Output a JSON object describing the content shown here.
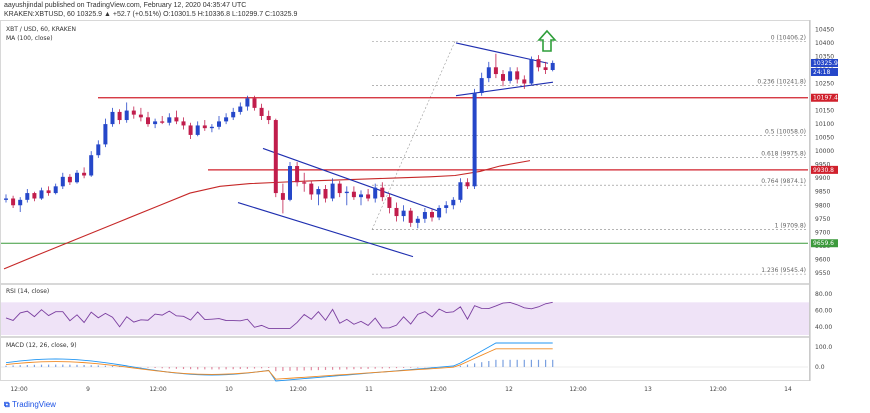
{
  "header": {
    "publisher": "aayushjindal published on TradingView.com, February 12, 2020 04:35:47 UTC",
    "quote": "KRAKEN:XBTUSD, 60  10325.9 ▲ +52.7 (+0.51%)  O:10301.5 H:10336.8 L:10299.7 C:10325.9",
    "symbol": "XBT / USD, 60, KRAKEN",
    "ma_label": "MA (100, close)"
  },
  "footer": {
    "brand": "TradingView"
  },
  "colors": {
    "up": "#2547c9",
    "down": "#c11d4c",
    "ma": "#c62828",
    "channel": "#1f2fb0",
    "hline": "#d0202c",
    "support": "#3c9a3c",
    "rsi_band": "#efe3f7",
    "rsi_line": "#7b3fa0",
    "macd": "#2196f3",
    "signal": "#f08a24",
    "arrow": "#2e9e3a"
  },
  "chart_data": {
    "type": "candlestick",
    "x_ticks": [
      "12:00",
      "9",
      "12:00",
      "10",
      "12:00",
      "11",
      "12:00",
      "12",
      "12:00",
      "13",
      "12:00",
      "14"
    ],
    "y_ticks": [
      10450,
      10400,
      10350,
      10300,
      10250,
      10200,
      10150,
      10100,
      10050,
      10000,
      9950,
      9900,
      9850,
      9800,
      9750,
      9700,
      9650,
      9600,
      9550
    ],
    "ylim": [
      9520,
      10470
    ],
    "price_tags": [
      {
        "value": 10325.9,
        "label": "10325.9",
        "color": "#2547c9"
      },
      {
        "value": 10325.9,
        "label": "24:18",
        "color": "#2547c9",
        "offset": 9
      },
      {
        "value": 10197.4,
        "label": "10197.4",
        "color": "#d0202c"
      },
      {
        "value": 9930.8,
        "label": "9930.8",
        "color": "#d0202c"
      },
      {
        "value": 9659.6,
        "label": "9659.6",
        "color": "#3c9a3c"
      }
    ],
    "fib_levels": [
      {
        "label": "0 (10406.2)",
        "value": 10406.2
      },
      {
        "label": "0.236 (10241.8)",
        "value": 10241.8
      },
      {
        "label": "0.5 (10058.0)",
        "value": 10058.0
      },
      {
        "label": "0.618 (9975.8)",
        "value": 9975.8
      },
      {
        "label": "0.764 (9874.1)",
        "value": 9874.1
      },
      {
        "label": "1 (9709.8)",
        "value": 9709.8
      },
      {
        "label": "1.236 (9545.4)",
        "value": 9545.4
      }
    ],
    "horizontal_lines": [
      10197.4,
      9930.8,
      9659.6
    ],
    "ma_path": [
      [
        4,
        9565
      ],
      [
        40,
        9620
      ],
      [
        80,
        9680
      ],
      [
        120,
        9740
      ],
      [
        160,
        9800
      ],
      [
        190,
        9845
      ],
      [
        220,
        9870
      ],
      [
        250,
        9880
      ],
      [
        280,
        9885
      ],
      [
        310,
        9890
      ],
      [
        350,
        9895
      ],
      [
        390,
        9900
      ],
      [
        430,
        9905
      ],
      [
        455,
        9910
      ],
      [
        480,
        9925
      ],
      [
        500,
        9945
      ],
      [
        530,
        9965
      ]
    ],
    "candles": [
      {
        "i": 0,
        "o": 9820,
        "h": 9840,
        "l": 9810,
        "c": 9825
      },
      {
        "i": 1,
        "o": 9825,
        "h": 9835,
        "l": 9790,
        "c": 9800
      },
      {
        "i": 2,
        "o": 9800,
        "h": 9830,
        "l": 9775,
        "c": 9820
      },
      {
        "i": 3,
        "o": 9820,
        "h": 9860,
        "l": 9810,
        "c": 9845
      },
      {
        "i": 4,
        "o": 9845,
        "h": 9850,
        "l": 9815,
        "c": 9825
      },
      {
        "i": 5,
        "o": 9825,
        "h": 9865,
        "l": 9820,
        "c": 9855
      },
      {
        "i": 6,
        "o": 9855,
        "h": 9870,
        "l": 9835,
        "c": 9845
      },
      {
        "i": 7,
        "o": 9845,
        "h": 9880,
        "l": 9840,
        "c": 9870
      },
      {
        "i": 8,
        "o": 9870,
        "h": 9920,
        "l": 9860,
        "c": 9905
      },
      {
        "i": 9,
        "o": 9905,
        "h": 9915,
        "l": 9875,
        "c": 9885
      },
      {
        "i": 10,
        "o": 9885,
        "h": 9930,
        "l": 9880,
        "c": 9920
      },
      {
        "i": 11,
        "o": 9920,
        "h": 9940,
        "l": 9900,
        "c": 9910
      },
      {
        "i": 12,
        "o": 9910,
        "h": 10000,
        "l": 9905,
        "c": 9985
      },
      {
        "i": 13,
        "o": 9985,
        "h": 10040,
        "l": 9975,
        "c": 10025
      },
      {
        "i": 14,
        "o": 10025,
        "h": 10120,
        "l": 10015,
        "c": 10100
      },
      {
        "i": 15,
        "o": 10100,
        "h": 10160,
        "l": 10090,
        "c": 10145
      },
      {
        "i": 16,
        "o": 10145,
        "h": 10155,
        "l": 10100,
        "c": 10115
      },
      {
        "i": 17,
        "o": 10115,
        "h": 10180,
        "l": 10105,
        "c": 10150
      },
      {
        "i": 18,
        "o": 10150,
        "h": 10165,
        "l": 10120,
        "c": 10135
      },
      {
        "i": 19,
        "o": 10135,
        "h": 10160,
        "l": 10110,
        "c": 10125
      },
      {
        "i": 20,
        "o": 10125,
        "h": 10145,
        "l": 10090,
        "c": 10100
      },
      {
        "i": 21,
        "o": 10100,
        "h": 10120,
        "l": 10085,
        "c": 10110
      },
      {
        "i": 22,
        "o": 10110,
        "h": 10130,
        "l": 10100,
        "c": 10105
      },
      {
        "i": 23,
        "o": 10105,
        "h": 10140,
        "l": 10095,
        "c": 10125
      },
      {
        "i": 24,
        "o": 10125,
        "h": 10150,
        "l": 10100,
        "c": 10110
      },
      {
        "i": 25,
        "o": 10110,
        "h": 10125,
        "l": 10080,
        "c": 10095
      },
      {
        "i": 26,
        "o": 10095,
        "h": 10105,
        "l": 10045,
        "c": 10060
      },
      {
        "i": 27,
        "o": 10060,
        "h": 10110,
        "l": 10055,
        "c": 10095
      },
      {
        "i": 28,
        "o": 10095,
        "h": 10115,
        "l": 10075,
        "c": 10085
      },
      {
        "i": 29,
        "o": 10085,
        "h": 10100,
        "l": 10070,
        "c": 10090
      },
      {
        "i": 30,
        "o": 10090,
        "h": 10130,
        "l": 10080,
        "c": 10110
      },
      {
        "i": 31,
        "o": 10110,
        "h": 10140,
        "l": 10100,
        "c": 10125
      },
      {
        "i": 32,
        "o": 10125,
        "h": 10160,
        "l": 10115,
        "c": 10145
      },
      {
        "i": 33,
        "o": 10145,
        "h": 10180,
        "l": 10135,
        "c": 10165
      },
      {
        "i": 34,
        "o": 10165,
        "h": 10205,
        "l": 10150,
        "c": 10195
      },
      {
        "i": 35,
        "o": 10195,
        "h": 10205,
        "l": 10150,
        "c": 10160
      },
      {
        "i": 36,
        "o": 10160,
        "h": 10175,
        "l": 10115,
        "c": 10130
      },
      {
        "i": 37,
        "o": 10130,
        "h": 10150,
        "l": 10100,
        "c": 10115
      },
      {
        "i": 38,
        "o": 10115,
        "h": 10120,
        "l": 9830,
        "c": 9845
      },
      {
        "i": 39,
        "o": 9845,
        "h": 9880,
        "l": 9770,
        "c": 9820
      },
      {
        "i": 40,
        "o": 9820,
        "h": 9960,
        "l": 9815,
        "c": 9945
      },
      {
        "i": 41,
        "o": 9945,
        "h": 9960,
        "l": 9870,
        "c": 9885
      },
      {
        "i": 42,
        "o": 9885,
        "h": 9920,
        "l": 9850,
        "c": 9880
      },
      {
        "i": 43,
        "o": 9880,
        "h": 9890,
        "l": 9820,
        "c": 9840
      },
      {
        "i": 44,
        "o": 9840,
        "h": 9870,
        "l": 9800,
        "c": 9860
      },
      {
        "i": 45,
        "o": 9860,
        "h": 9875,
        "l": 9810,
        "c": 9825
      },
      {
        "i": 46,
        "o": 9825,
        "h": 9900,
        "l": 9815,
        "c": 9880
      },
      {
        "i": 47,
        "o": 9880,
        "h": 9890,
        "l": 9830,
        "c": 9845
      },
      {
        "i": 48,
        "o": 9845,
        "h": 9870,
        "l": 9800,
        "c": 9850
      },
      {
        "i": 49,
        "o": 9850,
        "h": 9870,
        "l": 9820,
        "c": 9830
      },
      {
        "i": 50,
        "o": 9830,
        "h": 9855,
        "l": 9800,
        "c": 9840
      },
      {
        "i": 51,
        "o": 9840,
        "h": 9860,
        "l": 9815,
        "c": 9825
      },
      {
        "i": 52,
        "o": 9825,
        "h": 9880,
        "l": 9810,
        "c": 9865
      },
      {
        "i": 53,
        "o": 9865,
        "h": 9885,
        "l": 9815,
        "c": 9830
      },
      {
        "i": 54,
        "o": 9830,
        "h": 9845,
        "l": 9770,
        "c": 9790
      },
      {
        "i": 55,
        "o": 9790,
        "h": 9810,
        "l": 9740,
        "c": 9760
      },
      {
        "i": 56,
        "o": 9760,
        "h": 9800,
        "l": 9740,
        "c": 9780
      },
      {
        "i": 57,
        "o": 9780,
        "h": 9790,
        "l": 9720,
        "c": 9735
      },
      {
        "i": 58,
        "o": 9735,
        "h": 9760,
        "l": 9715,
        "c": 9750
      },
      {
        "i": 59,
        "o": 9750,
        "h": 9790,
        "l": 9735,
        "c": 9775
      },
      {
        "i": 60,
        "o": 9775,
        "h": 9785,
        "l": 9740,
        "c": 9755
      },
      {
        "i": 61,
        "o": 9755,
        "h": 9800,
        "l": 9745,
        "c": 9790
      },
      {
        "i": 62,
        "o": 9790,
        "h": 9815,
        "l": 9770,
        "c": 9800
      },
      {
        "i": 63,
        "o": 9800,
        "h": 9830,
        "l": 9785,
        "c": 9820
      },
      {
        "i": 64,
        "o": 9820,
        "h": 9900,
        "l": 9810,
        "c": 9885
      },
      {
        "i": 65,
        "o": 9885,
        "h": 9900,
        "l": 9860,
        "c": 9870
      },
      {
        "i": 66,
        "o": 9870,
        "h": 10230,
        "l": 9860,
        "c": 10215
      },
      {
        "i": 67,
        "o": 10215,
        "h": 10290,
        "l": 10205,
        "c": 10270
      },
      {
        "i": 68,
        "o": 10270,
        "h": 10330,
        "l": 10255,
        "c": 10310
      },
      {
        "i": 69,
        "o": 10310,
        "h": 10360,
        "l": 10270,
        "c": 10285
      },
      {
        "i": 70,
        "o": 10285,
        "h": 10300,
        "l": 10240,
        "c": 10260
      },
      {
        "i": 71,
        "o": 10260,
        "h": 10310,
        "l": 10250,
        "c": 10295
      },
      {
        "i": 72,
        "o": 10295,
        "h": 10310,
        "l": 10250,
        "c": 10265
      },
      {
        "i": 73,
        "o": 10265,
        "h": 10280,
        "l": 10230,
        "c": 10250
      },
      {
        "i": 74,
        "o": 10250,
        "h": 10350,
        "l": 10245,
        "c": 10340
      },
      {
        "i": 75,
        "o": 10340,
        "h": 10355,
        "l": 10295,
        "c": 10310
      },
      {
        "i": 76,
        "o": 10310,
        "h": 10330,
        "l": 10285,
        "c": 10300
      },
      {
        "i": 77,
        "o": 10300,
        "h": 10335,
        "l": 10295,
        "c": 10326
      }
    ],
    "rsi": {
      "label": "RSI (14, close)",
      "y_ticks": [
        80,
        60,
        40
      ],
      "ylim": [
        30,
        90
      ],
      "band": [
        30,
        70
      ]
    },
    "macd": {
      "label": "MACD (12, 26, close, 9)",
      "y_ticks": [
        "100.0",
        "0.0"
      ]
    }
  }
}
